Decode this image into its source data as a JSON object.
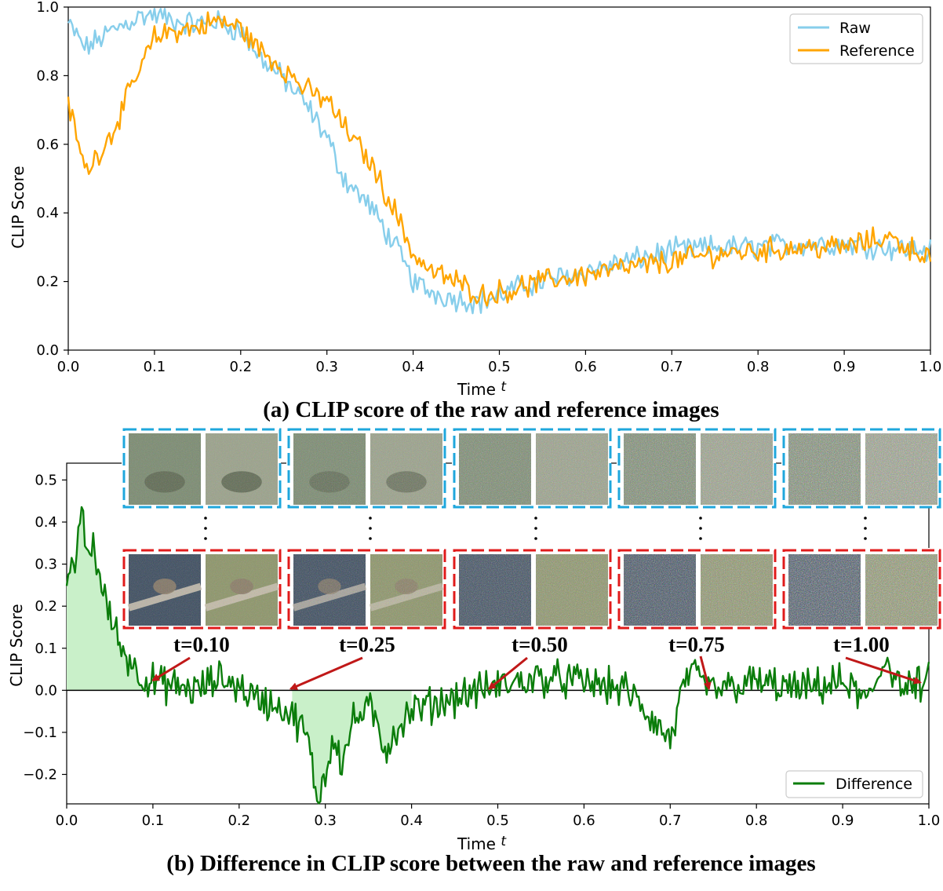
{
  "colors": {
    "raw": "#87CEEB",
    "reference": "#FFA500",
    "difference": "#0B7D0B",
    "fill": "#C9F0C9",
    "arrow": "#C01818",
    "frame_raw": "#1FA7DC",
    "frame_ref": "#E01B1B"
  },
  "chart_data": [
    {
      "type": "line",
      "title": "(a) CLIP score of the raw and reference images",
      "xlabel": "Time",
      "xlabel_var": "t",
      "ylabel": "CLIP Score",
      "xlim": [
        0.0,
        1.0
      ],
      "ylim": [
        0.0,
        1.0
      ],
      "xticks": [
        "0.0",
        "0.1",
        "0.2",
        "0.3",
        "0.4",
        "0.5",
        "0.6",
        "0.7",
        "0.8",
        "0.9",
        "1.0"
      ],
      "yticks": [
        "0.0",
        "0.2",
        "0.4",
        "0.6",
        "0.8",
        "1.0"
      ],
      "legend": [
        "Raw",
        "Reference"
      ],
      "legend_position": "top-right",
      "x": [
        0.0,
        0.02,
        0.05,
        0.08,
        0.1,
        0.12,
        0.15,
        0.17,
        0.2,
        0.22,
        0.25,
        0.28,
        0.3,
        0.32,
        0.35,
        0.38,
        0.4,
        0.42,
        0.45,
        0.48,
        0.5,
        0.52,
        0.55,
        0.6,
        0.65,
        0.7,
        0.75,
        0.8,
        0.85,
        0.9,
        0.95,
        1.0
      ],
      "series": [
        {
          "name": "Raw",
          "values": [
            0.95,
            0.88,
            0.93,
            0.97,
            0.98,
            0.96,
            0.95,
            0.96,
            0.93,
            0.86,
            0.79,
            0.7,
            0.62,
            0.5,
            0.42,
            0.3,
            0.2,
            0.17,
            0.15,
            0.14,
            0.16,
            0.18,
            0.2,
            0.23,
            0.26,
            0.29,
            0.3,
            0.3,
            0.31,
            0.31,
            0.3,
            0.29
          ]
        },
        {
          "name": "Reference",
          "values": [
            0.72,
            0.52,
            0.63,
            0.8,
            0.91,
            0.93,
            0.94,
            0.96,
            0.94,
            0.88,
            0.82,
            0.75,
            0.73,
            0.65,
            0.55,
            0.4,
            0.28,
            0.23,
            0.2,
            0.16,
            0.17,
            0.18,
            0.2,
            0.22,
            0.24,
            0.26,
            0.28,
            0.29,
            0.3,
            0.3,
            0.33,
            0.27
          ]
        }
      ]
    },
    {
      "type": "area",
      "title": "(b) Difference in CLIP score between the raw and reference images",
      "xlabel": "Time",
      "xlabel_var": "t",
      "ylabel": "CLIP Score",
      "xlim": [
        0.0,
        1.0
      ],
      "ylim": [
        -0.27,
        0.54
      ],
      "xticks": [
        "0.0",
        "0.1",
        "0.2",
        "0.3",
        "0.4",
        "0.5",
        "0.6",
        "0.7",
        "0.8",
        "0.9",
        "1.0"
      ],
      "yticks": [
        "−0.2",
        "−0.1",
        "0.0",
        "0.1",
        "0.2",
        "0.3",
        "0.4",
        "0.5"
      ],
      "legend": [
        "Difference"
      ],
      "legend_position": "bottom-right",
      "x": [
        0.0,
        0.01,
        0.016,
        0.025,
        0.03,
        0.04,
        0.05,
        0.06,
        0.07,
        0.08,
        0.09,
        0.1,
        0.12,
        0.15,
        0.18,
        0.2,
        0.22,
        0.25,
        0.27,
        0.28,
        0.29,
        0.3,
        0.31,
        0.32,
        0.33,
        0.35,
        0.37,
        0.38,
        0.4,
        0.43,
        0.46,
        0.5,
        0.55,
        0.6,
        0.65,
        0.7,
        0.72,
        0.75,
        0.8,
        0.85,
        0.9,
        0.93,
        0.95,
        0.97,
        1.0
      ],
      "series": [
        {
          "name": "Difference",
          "values": [
            0.23,
            0.3,
            0.44,
            0.3,
            0.36,
            0.25,
            0.18,
            0.12,
            0.08,
            0.05,
            0.03,
            0.02,
            0.01,
            0.0,
            0.03,
            0.01,
            -0.02,
            -0.04,
            -0.08,
            -0.12,
            -0.26,
            -0.2,
            -0.1,
            -0.18,
            -0.08,
            -0.04,
            -0.14,
            -0.1,
            -0.05,
            -0.03,
            -0.01,
            0.01,
            0.03,
            0.02,
            0.0,
            -0.12,
            0.04,
            0.0,
            0.02,
            0.0,
            0.02,
            -0.03,
            0.08,
            0.0,
            0.02
          ]
        }
      ],
      "annotations": [
        "t=0.10",
        "t=0.25",
        "t=0.50",
        "t=0.75",
        "t=1.00"
      ],
      "annotation_targets": [
        {
          "label": "t=0.10",
          "x": 0.1,
          "y": 0.02
        },
        {
          "label": "t=0.25",
          "x": 0.26,
          "y": 0.0
        },
        {
          "label": "t=0.50",
          "x": 0.49,
          "y": 0.0
        },
        {
          "label": "t=0.75",
          "x": 0.745,
          "y": 0.0
        },
        {
          "label": "t=1.00",
          "x": 0.99,
          "y": 0.015
        }
      ],
      "image_strip": {
        "rows": [
          "raw",
          "reference"
        ],
        "times": [
          "t=0.10",
          "t=0.25",
          "t=0.50",
          "t=0.75",
          "t=1.00"
        ],
        "noise_levels": [
          0.1,
          0.25,
          0.5,
          0.75,
          1.0
        ]
      }
    }
  ]
}
